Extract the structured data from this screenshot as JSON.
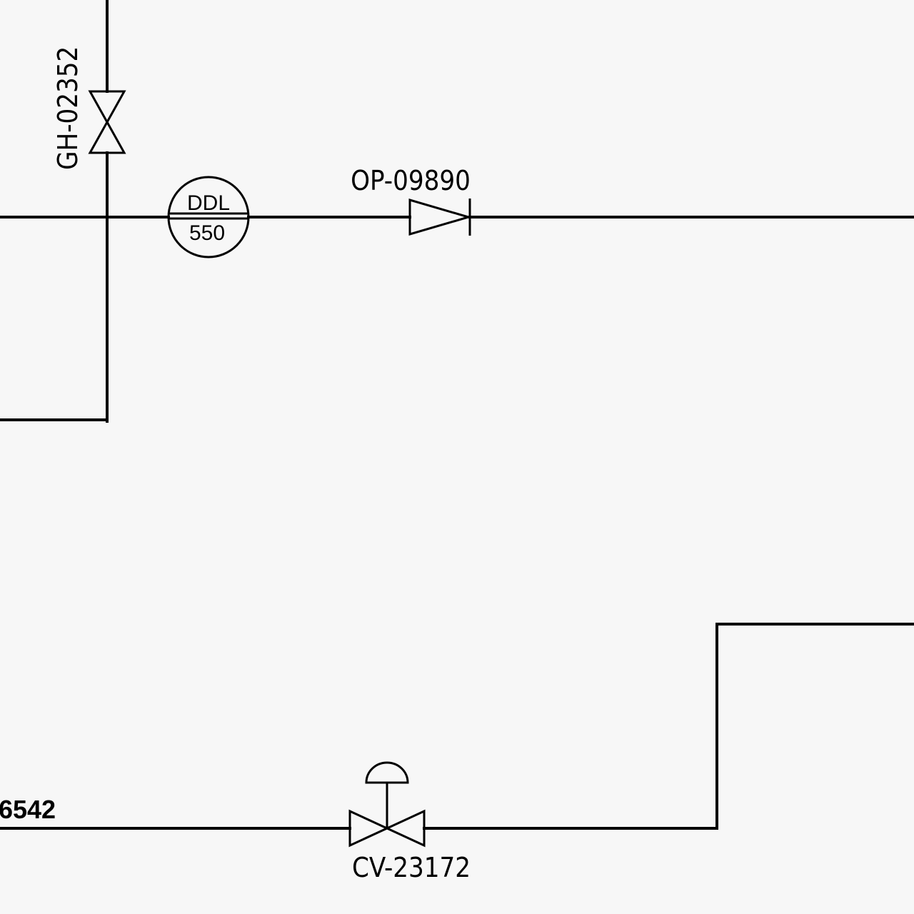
{
  "diagram": {
    "labels": {
      "gate_valve_tag": "GH-02352",
      "check_valve_tag": "OP-09890",
      "control_valve_tag": "CV-23172",
      "line_id": "-6542"
    },
    "instrument": {
      "function": "DDL",
      "loop_number": "550"
    },
    "icons": [
      "gate-valve-icon",
      "instrument-bubble-icon",
      "check-valve-icon",
      "control-valve-icon",
      "diaphragm-actuator-icon"
    ],
    "colors": {
      "line": "#000000",
      "background": "#f7f7f7"
    }
  }
}
